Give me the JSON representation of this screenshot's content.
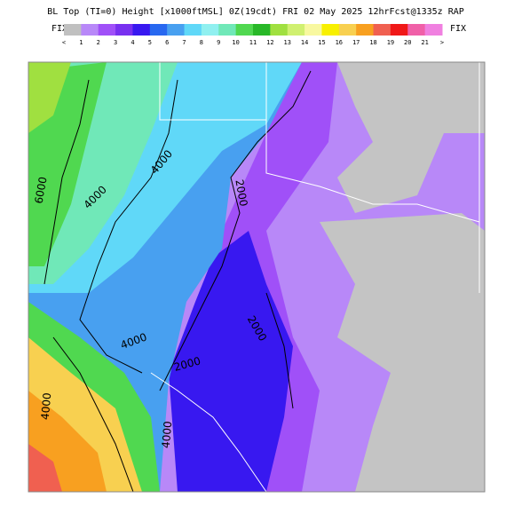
{
  "header": {
    "title": "BL Top (TI=0) Height [x1000ftMSL] 0Z(19cdt) FRI 02 May 2025 12hrFcst@1335z RAP",
    "left_label": "FIX",
    "right_label": "FIX"
  },
  "legend": {
    "labels": [
      "<",
      "1",
      "2",
      "3",
      "4",
      "5",
      "6",
      "7",
      "8",
      "9",
      "10",
      "11",
      "12",
      "13",
      "14",
      "15",
      "16",
      "17",
      "18",
      "19",
      "20",
      "21",
      ">"
    ],
    "colors": [
      "#c0c0c0",
      "#b888f8",
      "#a050f8",
      "#7830f0",
      "#3818f0",
      "#2868f0",
      "#48a0f0",
      "#60d8f8",
      "#90f0f0",
      "#70e8b8",
      "#50d850",
      "#28b828",
      "#a0e040",
      "#d0f070",
      "#f8f8a0",
      "#f8f000",
      "#f8d050",
      "#f8a020",
      "#f06050",
      "#f01818",
      "#f060a8",
      "#f080e0"
    ]
  },
  "contour_labels": [
    "4000",
    "6000",
    "4000",
    "2000",
    "4000",
    "2000",
    "2000",
    "4000",
    "4000"
  ]
}
